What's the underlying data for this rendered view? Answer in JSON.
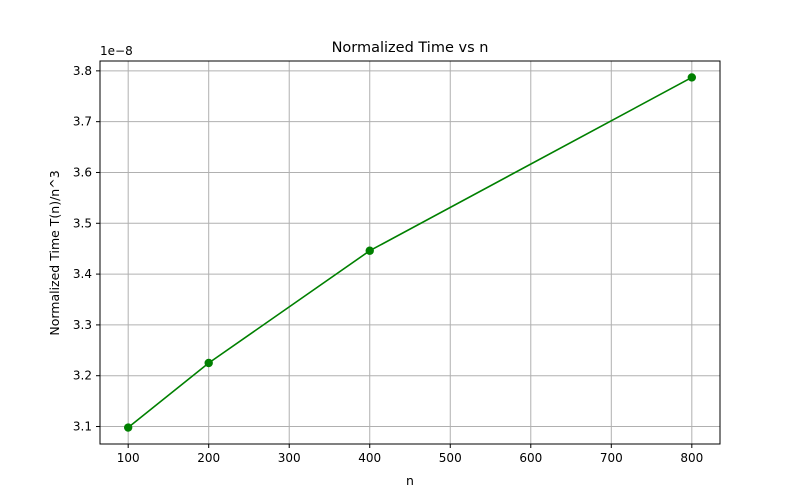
{
  "chart_data": {
    "type": "line",
    "title": "Normalized Time vs n",
    "xlabel": "n",
    "ylabel": "Normalized Time T(n)/n^3",
    "y_offset_label": "1e−8",
    "x": [
      100,
      200,
      400,
      800
    ],
    "series": [
      {
        "values": [
          3.098,
          3.225,
          3.446,
          3.787
        ],
        "color": "#008000",
        "marker": "circle"
      }
    ],
    "xlim": [
      65,
      835
    ],
    "ylim": [
      3.0656,
      3.8194
    ],
    "x_ticks": [
      100,
      200,
      300,
      400,
      500,
      600,
      700,
      800
    ],
    "y_ticks": [
      3.1,
      3.2,
      3.3,
      3.4,
      3.5,
      3.6,
      3.7,
      3.8
    ],
    "grid": true,
    "legend": false
  },
  "colors": {
    "grid": "#b0b0b0",
    "axis": "#000000"
  }
}
